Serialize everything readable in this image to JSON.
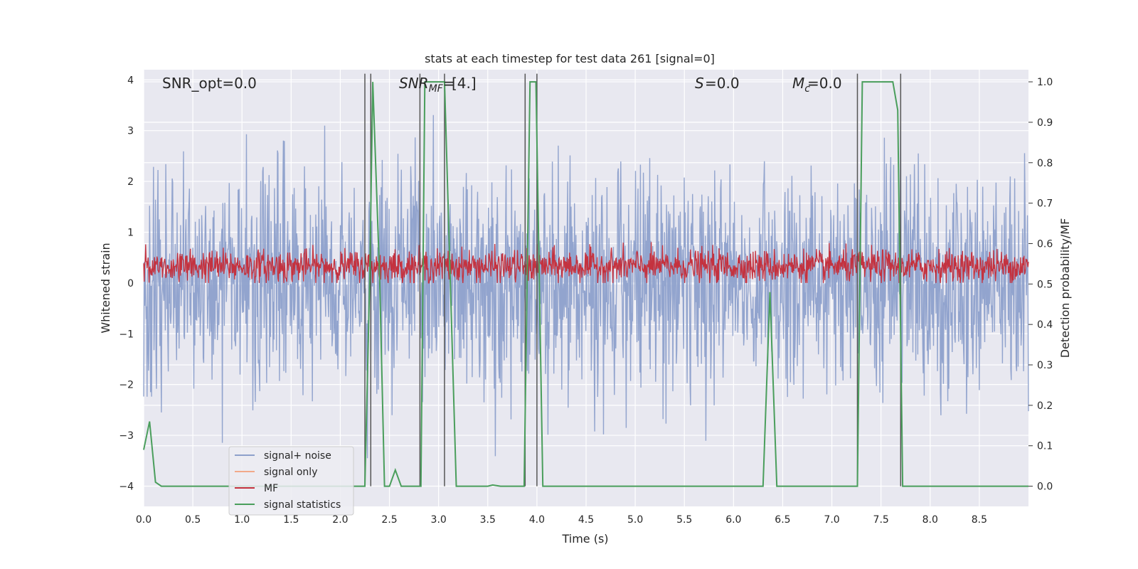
{
  "chart_data": {
    "type": "line",
    "title": "stats at each timestep for test data 261 [signal=0]",
    "xlabel": "Time (s)",
    "ylabel_left": "Whitened strain",
    "ylabel_right": "Detection probability/MF",
    "xlim": [
      0,
      9.0
    ],
    "ylim_left": [
      -4.4,
      4.2
    ],
    "ylim_right": [
      -0.05,
      1.03
    ],
    "x_ticks": [
      "0.0",
      "0.5",
      "1.0",
      "1.5",
      "2.0",
      "2.5",
      "3.0",
      "3.5",
      "4.0",
      "4.5",
      "5.0",
      "5.5",
      "6.0",
      "6.5",
      "7.0",
      "7.5",
      "8.0",
      "8.5"
    ],
    "y_ticks_left": [
      "4",
      "3",
      "2",
      "1",
      "0",
      "−1",
      "−2",
      "−3",
      "−4"
    ],
    "y_ticks_right": [
      "1.0",
      "0.9",
      "0.8",
      "0.7",
      "0.6",
      "0.5",
      "0.4",
      "0.3",
      "0.2",
      "0.1",
      "0.0"
    ],
    "annotations": {
      "snr_opt": "SNR_opt=0.0",
      "snr_mf": "[4.]",
      "s": "=0.0",
      "mc": "=0.0"
    },
    "legend": [
      {
        "label": "signal+ noise",
        "color": "#8da0cb"
      },
      {
        "label": "signal only",
        "color": "#f2a98a"
      },
      {
        "label": "MF",
        "color": "#c4323f"
      },
      {
        "label": "signal statistics",
        "color": "#4a9e5c"
      }
    ],
    "legend_position": "bottom-left",
    "grid": true,
    "series": [
      {
        "name": "signal+ noise",
        "color": "#8da0cb",
        "axis": "left",
        "description_range": [
          -4.0,
          3.6
        ],
        "n_samples": 1800
      },
      {
        "name": "MF",
        "color": "#c4323f",
        "axis": "left",
        "description_range": [
          0.0,
          0.95
        ],
        "n_samples": 1800
      },
      {
        "name": "signal statistics",
        "color": "#4a9e5c",
        "axis": "right",
        "x": [
          0.0,
          0.06,
          0.12,
          0.18,
          2.25,
          2.3,
          2.33,
          2.4,
          2.45,
          2.5,
          2.56,
          2.62,
          2.7,
          2.82,
          2.86,
          3.06,
          3.18,
          3.5,
          3.55,
          3.63,
          3.87,
          3.93,
          3.99,
          4.06,
          6.3,
          6.37,
          6.44,
          7.26,
          7.31,
          7.62,
          7.67,
          7.72,
          9.0
        ],
        "y": [
          0.09,
          0.16,
          0.01,
          0.0,
          0.0,
          0.52,
          1.0,
          0.52,
          0.0,
          0.0,
          0.04,
          0.0,
          0.0,
          0.0,
          1.0,
          1.0,
          0.0,
          0.0,
          0.003,
          0.0,
          0.0,
          1.0,
          1.0,
          0.0,
          0.0,
          0.48,
          0.0,
          0.0,
          1.0,
          1.0,
          0.93,
          0.0,
          0.0
        ]
      }
    ],
    "vertical_markers": [
      2.25,
      2.31,
      2.81,
      3.06,
      3.88,
      4.0,
      7.26,
      7.7
    ]
  }
}
